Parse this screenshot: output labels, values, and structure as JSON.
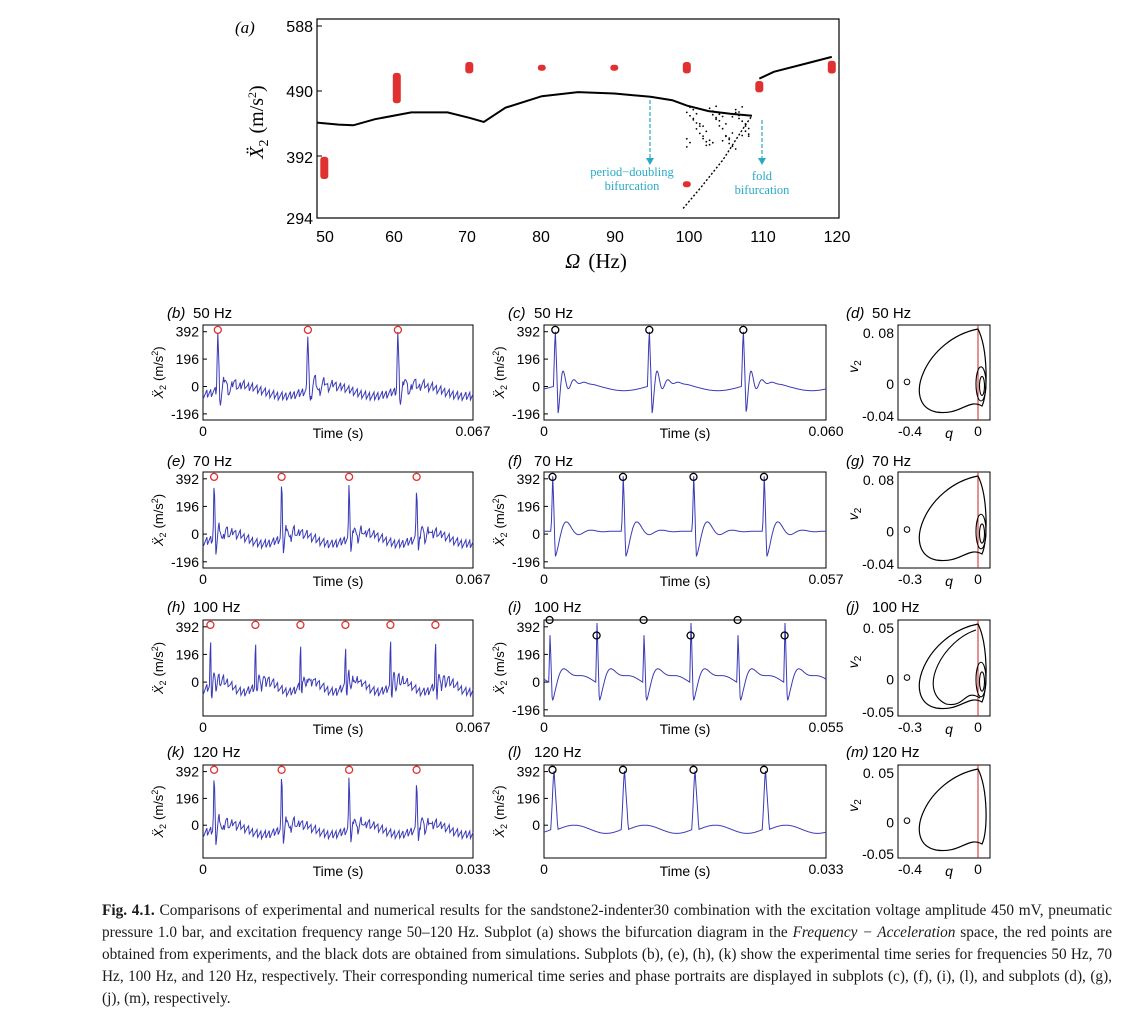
{
  "colors": {
    "experiment": "#e03030",
    "simulation": "#000000",
    "annotation": "#2aa8c8",
    "trace": "#3a3ab8",
    "marker_exp": "#e03030",
    "marker_sim": "#000000",
    "phase_line": "#cc2222"
  },
  "panel_a": {
    "label": "(a)",
    "ylabel_symbol": "Ẍ",
    "ylabel_sub": "2",
    "ylabel_unit": "(m/s",
    "ylabel_unit_sup": "2",
    "ylabel_unit_close": ")",
    "xlabel_symbol": "Ω",
    "xlabel_unit": "(Hz)",
    "yticks": [
      "588",
      "490",
      "392",
      "294"
    ],
    "xticks": [
      "50",
      "60",
      "70",
      "80",
      "90",
      "100",
      "110",
      "120"
    ],
    "annotation_pd_line1": "period−doubling",
    "annotation_pd_line2": "bifurcation",
    "annotation_fold_line1": "fold",
    "annotation_fold_line2": "bifurcation"
  },
  "chart_data": {
    "type": "scatter",
    "title": "Bifurcation diagram in the Frequency − Acceleration space",
    "xlabel": "Ω (Hz)",
    "ylabel": "Ẍ2 (m/s2)",
    "xlim": [
      49,
      121
    ],
    "ylim": [
      294,
      588
    ],
    "series": [
      {
        "name": "experiment",
        "points": [
          [
            50,
            356
          ],
          [
            50,
            380
          ],
          [
            60,
            468
          ],
          [
            60,
            490
          ],
          [
            60,
            504
          ],
          [
            70,
            512
          ],
          [
            70,
            520
          ],
          [
            80,
            516
          ],
          [
            90,
            516
          ],
          [
            100,
            512
          ],
          [
            100,
            520
          ],
          [
            100,
            344
          ],
          [
            110,
            484
          ],
          [
            110,
            492
          ],
          [
            120,
            512
          ],
          [
            120,
            522
          ]
        ]
      },
      {
        "name": "simulation",
        "points": [
          [
            49,
            435
          ],
          [
            52,
            432
          ],
          [
            54,
            431
          ],
          [
            57,
            440
          ],
          [
            62,
            450
          ],
          [
            67,
            450
          ],
          [
            70,
            442
          ],
          [
            72,
            436
          ],
          [
            75,
            457
          ],
          [
            80,
            474
          ],
          [
            85,
            480
          ],
          [
            90,
            478
          ],
          [
            95,
            473
          ],
          [
            98,
            468
          ],
          [
            100,
            460
          ],
          [
            103,
            452
          ],
          [
            106,
            448
          ],
          [
            109,
            445
          ],
          [
            99.5,
            308
          ],
          [
            102,
            340
          ],
          [
            105,
            380
          ],
          [
            108,
            430
          ],
          [
            109,
            445
          ],
          [
            110,
            500
          ],
          [
            112,
            510
          ],
          [
            116,
            521
          ],
          [
            120,
            532
          ]
        ]
      }
    ]
  },
  "panels": [
    {
      "id": "b",
      "label": "(b)",
      "title": "50 Hz",
      "yticks": [
        "392",
        "196",
        "0",
        "-196"
      ],
      "xstart": "0",
      "xend": "0.067",
      "xlabel": "Time (s)"
    },
    {
      "id": "c",
      "label": "(c)",
      "title": "50 Hz",
      "yticks": [
        "392",
        "196",
        "0",
        "-196"
      ],
      "xstart": "0",
      "xend": "0.060",
      "xlabel": "Time (s)"
    },
    {
      "id": "d",
      "label": "(d)",
      "title": "50 Hz",
      "yticks": [
        "0. 08",
        "0",
        "-0.04"
      ],
      "xticks": [
        "-0.4",
        "0"
      ],
      "xlabel": "q",
      "ylabel": "v",
      "ylabel_sub": "2"
    },
    {
      "id": "e",
      "label": "(e)",
      "title": "70 Hz",
      "yticks": [
        "392",
        "196",
        "0",
        "-196"
      ],
      "xstart": "0",
      "xend": "0.067",
      "xlabel": "Time (s)"
    },
    {
      "id": "f",
      "label": "(f)",
      "title": "70 Hz",
      "yticks": [
        "392",
        "196",
        "0",
        "-196"
      ],
      "xstart": "0",
      "xend": "0.057",
      "xlabel": "Time (s)"
    },
    {
      "id": "g",
      "label": "(g)",
      "title": "70 Hz",
      "yticks": [
        "0. 08",
        "0",
        "-0.04"
      ],
      "xticks": [
        "-0.3",
        "0"
      ],
      "xlabel": "q",
      "ylabel": "v",
      "ylabel_sub": "2"
    },
    {
      "id": "h",
      "label": "(h)",
      "title": "100 Hz",
      "yticks": [
        "392",
        "196",
        "0"
      ],
      "xstart": "0",
      "xend": "0.067",
      "xlabel": "Time (s)"
    },
    {
      "id": "i",
      "label": "(i)",
      "title": "100 Hz",
      "yticks": [
        "392",
        "196",
        "0",
        "-196"
      ],
      "xstart": "0",
      "xend": "0.055",
      "xlabel": "Time (s)"
    },
    {
      "id": "j",
      "label": "(j)",
      "title": "100 Hz",
      "yticks": [
        "0. 05",
        "0",
        "-0.05"
      ],
      "xticks": [
        "-0.3",
        "0"
      ],
      "xlabel": "q",
      "ylabel": "v",
      "ylabel_sub": "2"
    },
    {
      "id": "k",
      "label": "(k)",
      "title": "120 Hz",
      "yticks": [
        "392",
        "196",
        "0"
      ],
      "xstart": "0",
      "xend": "0.033",
      "xlabel": "Time (s)"
    },
    {
      "id": "l",
      "label": "(l)",
      "title": "120 Hz",
      "yticks": [
        "392",
        "196",
        "0"
      ],
      "xstart": "0",
      "xend": "0.033",
      "xlabel": "Time (s)"
    },
    {
      "id": "m",
      "label": "(m)",
      "title": "120 Hz",
      "yticks": [
        "0. 05",
        "0",
        "-0.05"
      ],
      "xticks": [
        "-0.4",
        "0"
      ],
      "xlabel": "q",
      "ylabel": "v",
      "ylabel_sub": "2"
    }
  ],
  "time_ylabel": {
    "symbol": "Ẍ",
    "sub": "2",
    "unit": "(m/s",
    "sup": "2",
    "close": ")"
  },
  "caption": {
    "fig_label": "Fig. 4.1.",
    "text_1": " Comparisons of experimental and numerical results for the sandstone2-indenter30 combination with the excitation voltage amplitude 450 mV, pneumatic pressure 1.0 bar, and excitation frequency range 50–120 Hz. Subplot (a) shows the bifurcation diagram in the ",
    "italic": "Frequency − Acceleration",
    "text_2": " space, the red points are obtained from experiments, and the black dots are obtained from simulations. Subplots (b), (e), (h), (k) show the experimental time series for frequencies 50 Hz, 70 Hz, 100 Hz, and 120 Hz, respectively. Their corresponding numerical time series and phase portraits are displayed in subplots (c), (f), (i), (l), and subplots (d), (g), (j), (m), respectively."
  }
}
